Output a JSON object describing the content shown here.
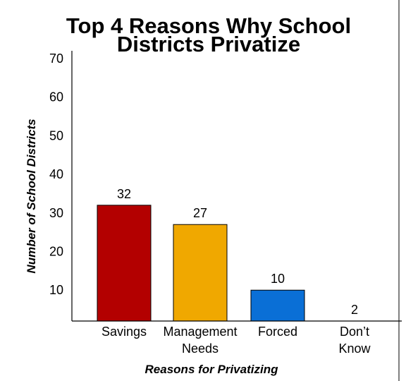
{
  "chart_data": {
    "type": "bar",
    "title_lines": [
      "Top 4 Reasons Why School",
      "Districts Privatize"
    ],
    "xlabel": "Reasons for Privatizing",
    "ylabel": "Number of School Districts",
    "categories": [
      [
        "Savings"
      ],
      [
        "Management",
        "Needs"
      ],
      [
        "Forced"
      ],
      [
        "Don’t",
        "Know"
      ]
    ],
    "values": [
      32,
      27,
      10,
      2
    ],
    "value_labels": [
      "32",
      "27",
      "10",
      "2"
    ],
    "colors": [
      "#b30000",
      "#f0a800",
      "#0a6fd6",
      "#1fcf6a"
    ],
    "y_ticks": [
      "10",
      "20",
      "30",
      "40",
      "50",
      "60",
      "70"
    ],
    "ylim": [
      2,
      72
    ],
    "grid": false
  }
}
